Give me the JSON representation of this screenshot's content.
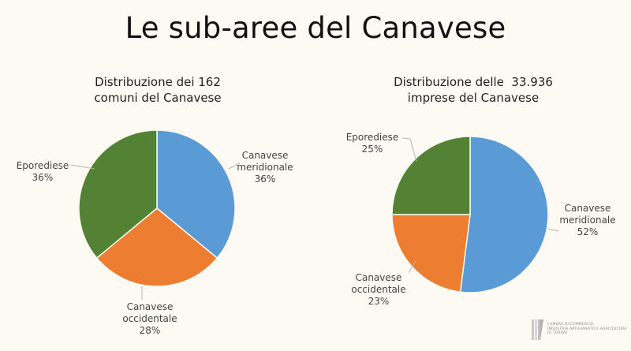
{
  "title": "Le sub-aree del Canavese",
  "colors": {
    "canavese_meridionale": "#5b9bd5",
    "canavese_occidentale": "#ed7d31",
    "eporediese": "#548235",
    "background": "#fdfaf3"
  },
  "chart_data": [
    {
      "type": "pie",
      "title": "Distribuzione dei 162 comuni del Canavese",
      "title_lines": [
        "Distribuzione dei 162",
        "comuni del Canavese"
      ],
      "categories": [
        "Canavese meridionale",
        "Canavese occidentale",
        "Eporediese"
      ],
      "values": [
        36,
        28,
        36
      ],
      "unit": "%",
      "labels": {
        "meridionale": [
          "Canavese",
          "meridionale",
          "36%"
        ],
        "occidentale": [
          "Canavese",
          "occidentale",
          "28%"
        ],
        "eporediese": [
          "Eporediese",
          "36%"
        ]
      },
      "legend": "none (data labels with leader lines)"
    },
    {
      "type": "pie",
      "title": "Distribuzione delle 33.936 imprese del Canavese",
      "title_lines": [
        "Distribuzione delle  33.936",
        "imprese del Canavese"
      ],
      "categories": [
        "Canavese meridionale",
        "Canavese occidentale",
        "Eporediese"
      ],
      "values": [
        52,
        23,
        25
      ],
      "unit": "%",
      "labels": {
        "meridionale": [
          "Canavese",
          "meridionale",
          "52%"
        ],
        "occidentale": [
          "Canavese",
          "occidentale",
          "23%"
        ],
        "eporediese": [
          "Eporediese",
          "25%"
        ]
      },
      "legend": "none (data labels with leader lines)"
    }
  ],
  "logo": {
    "lines": [
      "CAMERA DI COMMERCIO",
      "INDUSTRIA ARTIGIANATO E AGRICOLTURA",
      "DI TORINO"
    ]
  }
}
